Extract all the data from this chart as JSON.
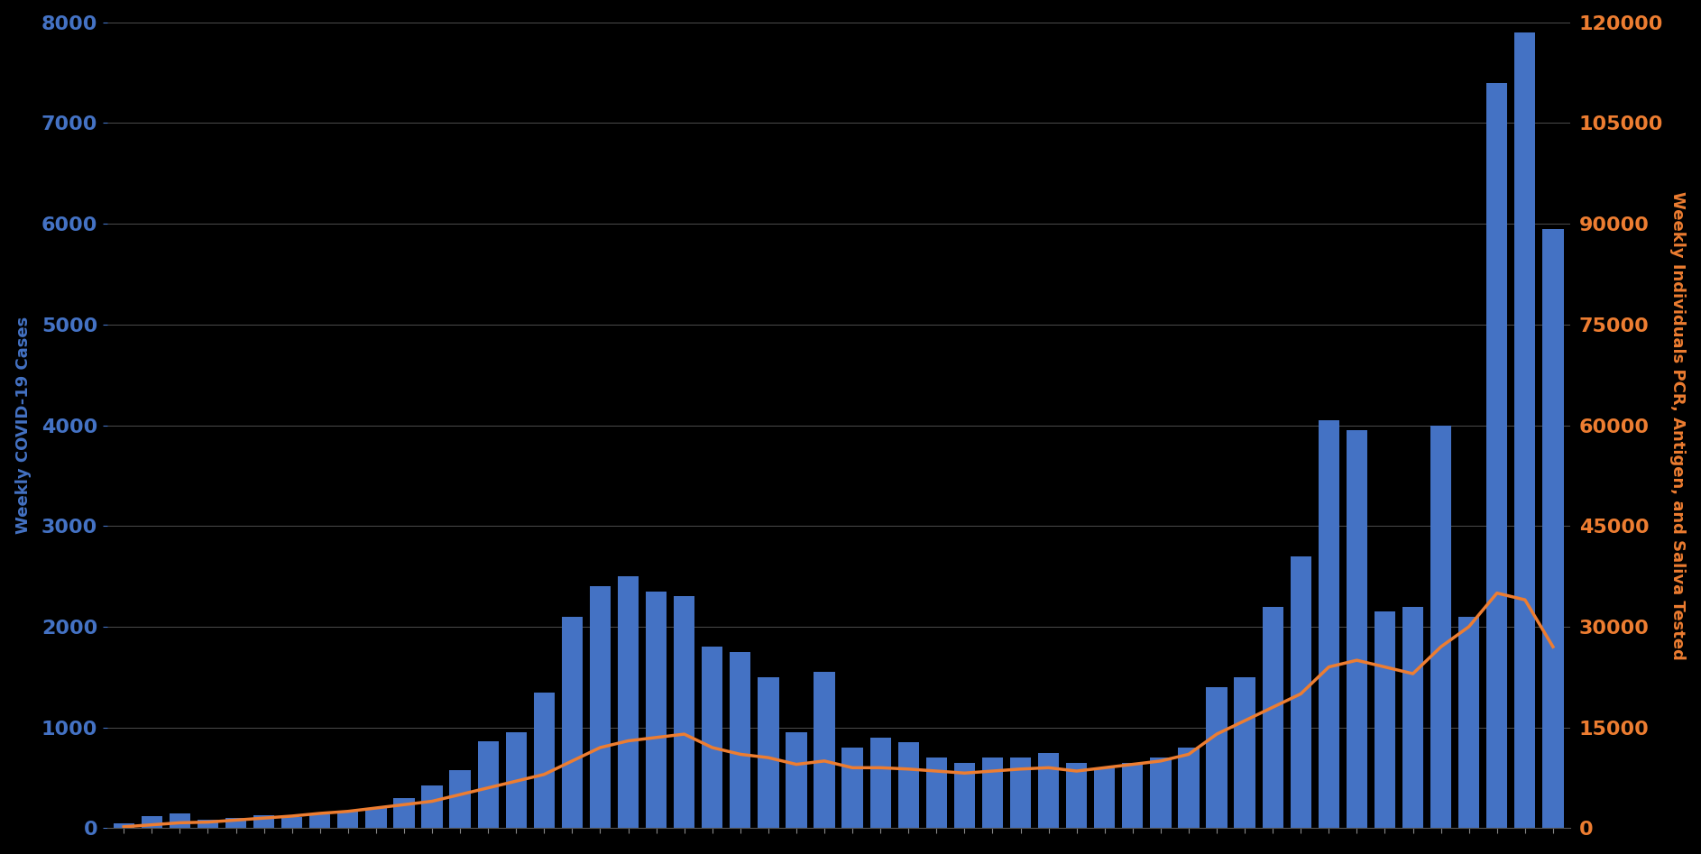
{
  "bar_values": [
    50,
    120,
    150,
    80,
    100,
    130,
    110,
    140,
    160,
    200,
    300,
    420,
    580,
    860,
    950,
    1350,
    2100,
    2400,
    2500,
    2350,
    2300,
    1800,
    1750,
    1500,
    950,
    1550,
    800,
    900,
    850,
    700,
    650,
    700,
    700,
    750,
    650,
    600,
    650,
    700,
    800,
    1400,
    1500,
    2200,
    2700,
    4050,
    3950,
    2150,
    2200,
    4000,
    2100,
    7400,
    7900,
    5950
  ],
  "line_values": [
    200,
    500,
    800,
    900,
    1200,
    1500,
    1800,
    2200,
    2500,
    3000,
    3500,
    4000,
    5000,
    6000,
    7000,
    8000,
    10000,
    12000,
    13000,
    13500,
    14000,
    12000,
    11000,
    10500,
    9500,
    10000,
    9000,
    9000,
    8800,
    8500,
    8200,
    8500,
    8800,
    9000,
    8500,
    9000,
    9500,
    10000,
    11000,
    14000,
    16000,
    18000,
    20000,
    24000,
    25000,
    24000,
    23000,
    27000,
    30000,
    35000,
    34000,
    27000
  ],
  "bar_color": "#4472c4",
  "line_color": "#ed7d31",
  "background_color": "#000000",
  "left_ylabel": "Weekly COVID-19 Cases",
  "right_ylabel": "Weekly Individuals PCR, Antigen, and Saliva Tested",
  "left_yticks": [
    0,
    1000,
    2000,
    3000,
    4000,
    5000,
    6000,
    7000,
    8000
  ],
  "right_yticks": [
    0,
    15000,
    30000,
    45000,
    60000,
    75000,
    90000,
    105000,
    120000
  ],
  "left_ylim": [
    0,
    8000
  ],
  "right_ylim": [
    0,
    120000
  ],
  "grid_color": "#ffffff",
  "left_label_color": "#4472c4",
  "right_label_color": "#ed7d31",
  "label_fontsize": 13,
  "tick_fontsize": 16,
  "line_width": 2.5,
  "bar_width": 0.75
}
